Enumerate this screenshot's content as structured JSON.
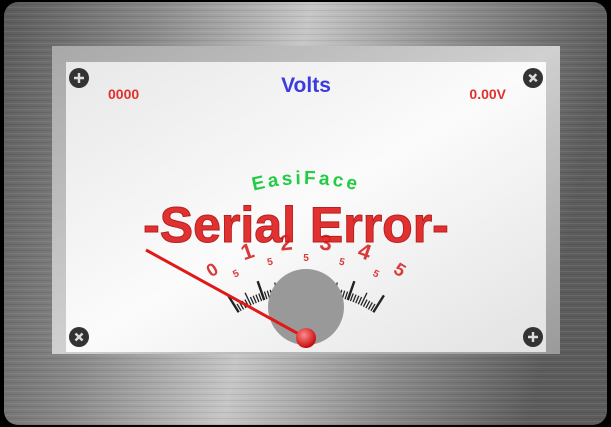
{
  "meter": {
    "title": "Volts",
    "counter": "0000",
    "voltage_readout": "0.00V",
    "brand": "EasiFace",
    "error_message": "-Serial Error-",
    "scale_major_labels": [
      "0",
      "1",
      "2",
      "3",
      "4",
      "5"
    ],
    "scale_minor_labels": [
      "5",
      "5",
      "5",
      "5",
      "5"
    ],
    "scale_min": 0,
    "scale_max": 5,
    "needle_value": 0
  },
  "colors": {
    "title": "#3b3be0",
    "readout": "#e03030",
    "scale": "#d83a3a",
    "brand": "#22cc44",
    "error": "#e02020",
    "needle": "#e01818",
    "face": "#f4f4f4"
  },
  "icons": {
    "screw_top_left": "screw-plus-icon",
    "screw_top_right": "screw-plus-icon",
    "screw_bottom_left": "screw-x-icon",
    "screw_bottom_right": "screw-plus-icon"
  }
}
